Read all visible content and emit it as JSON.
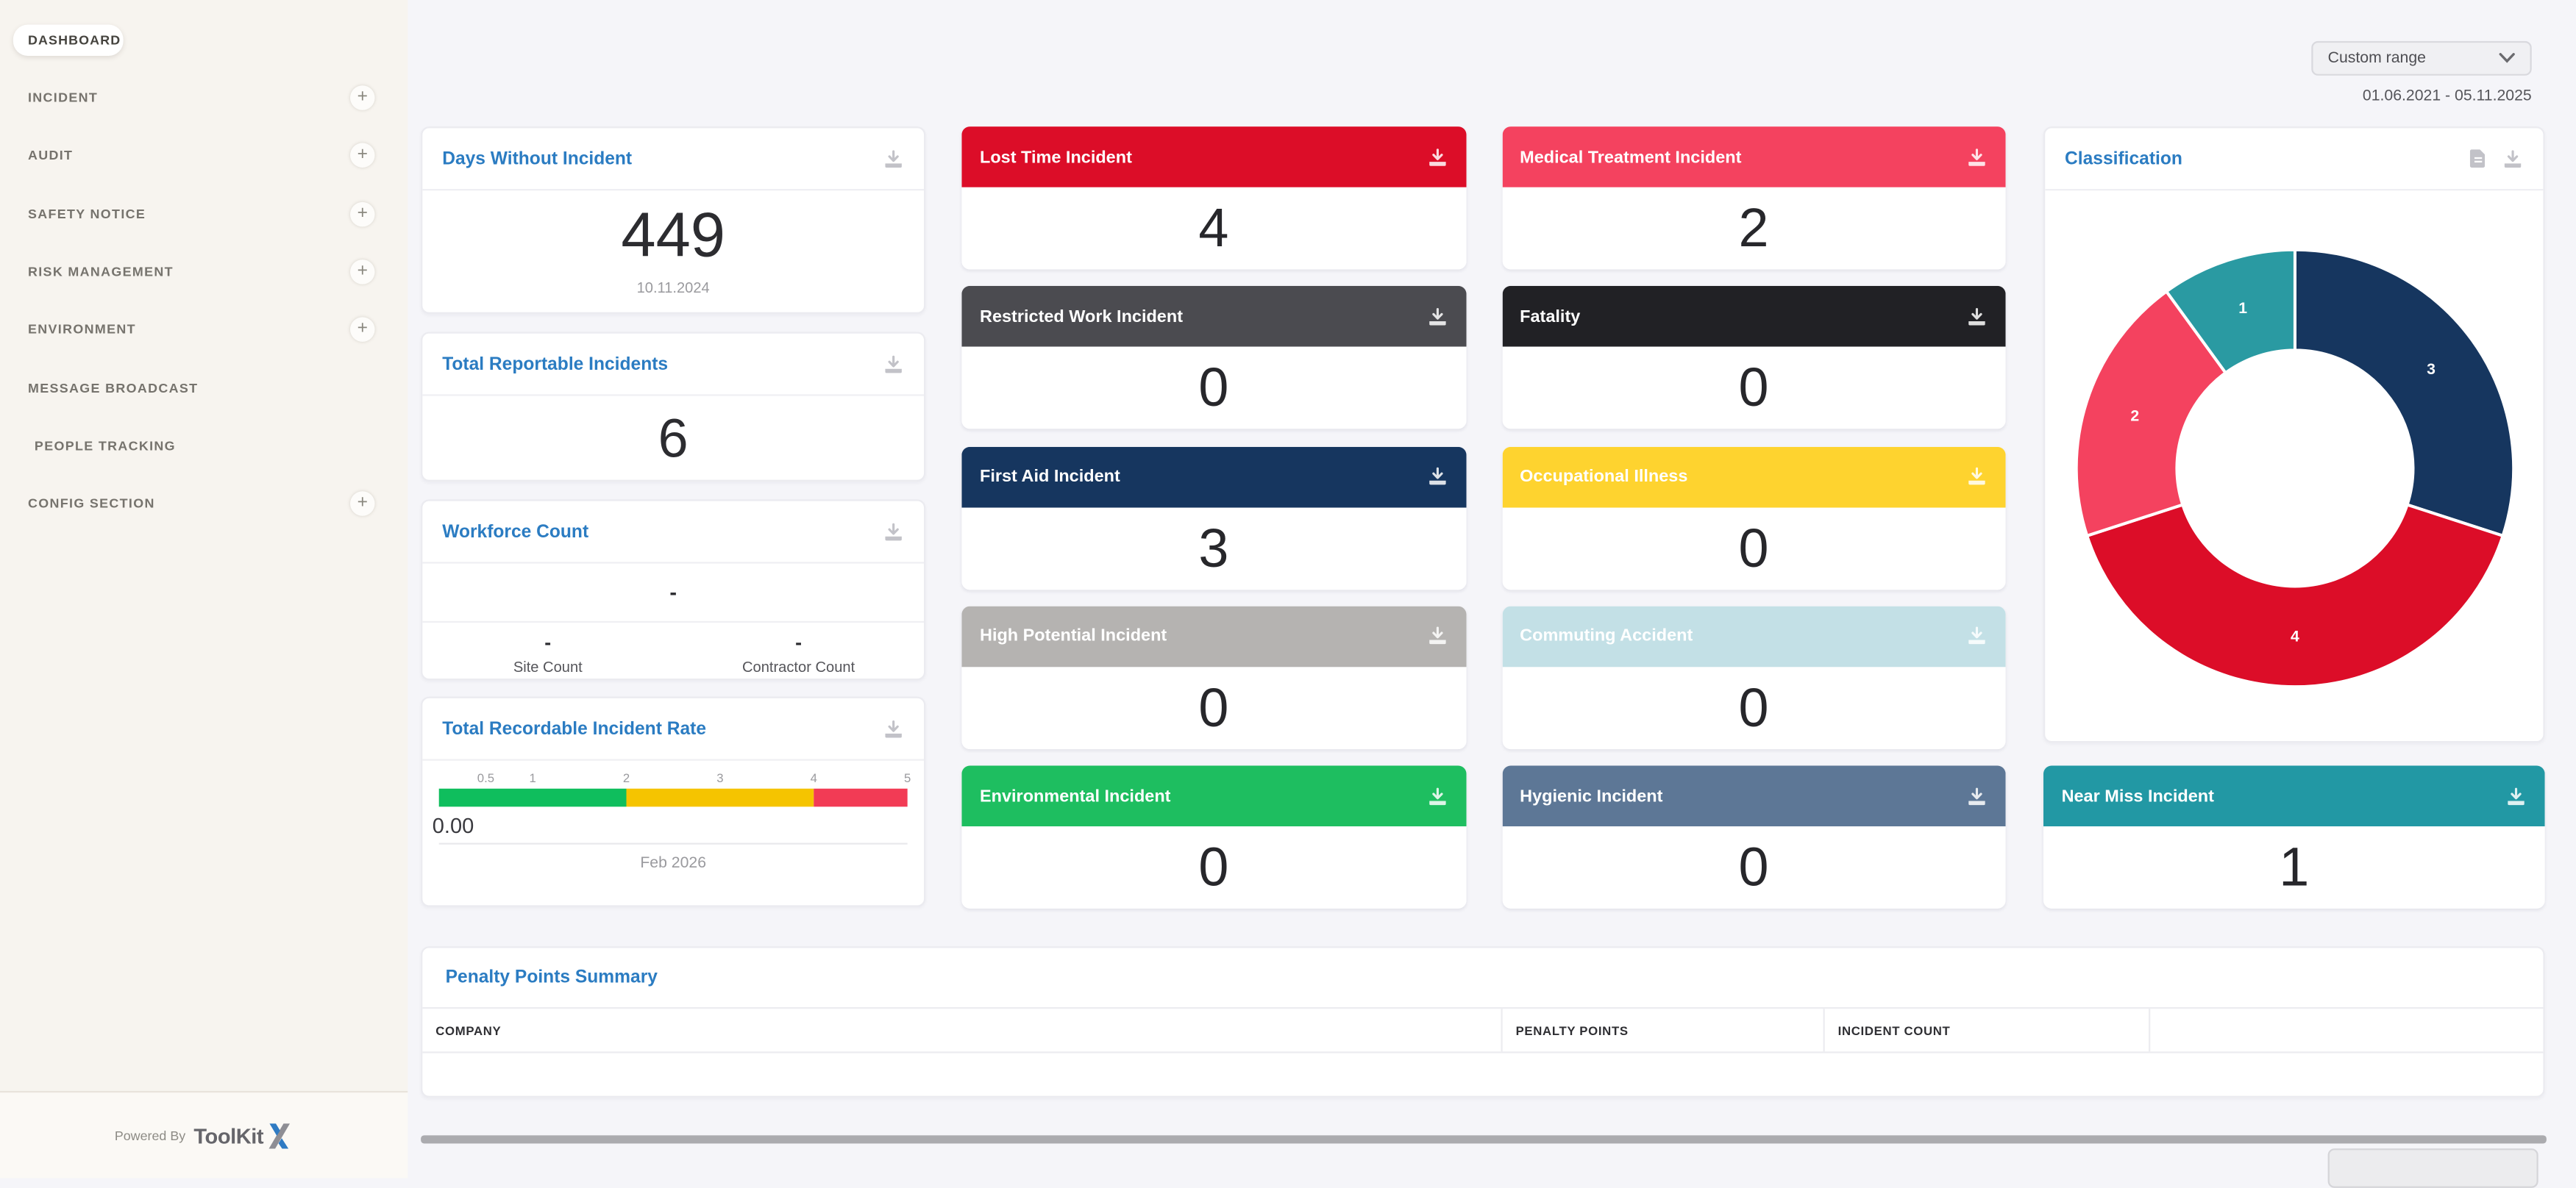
{
  "header": {
    "range_selector_value": "Custom range",
    "date_range": "01.06.2021 - 05.11.2025"
  },
  "sidebar": {
    "active_item": "DASHBOARD",
    "items": [
      {
        "label": "INCIDENT",
        "has_submenu": true
      },
      {
        "label": "AUDIT",
        "has_submenu": true
      },
      {
        "label": "SAFETY NOTICE",
        "has_submenu": true
      },
      {
        "label": "RISK MANAGEMENT",
        "has_submenu": true
      },
      {
        "label": "ENVIRONMENT",
        "has_submenu": true
      },
      {
        "label": "MESSAGE BROADCAST",
        "has_submenu": false
      },
      {
        "label": "PEOPLE TRACKING",
        "has_submenu": false
      },
      {
        "label": "CONFIG SECTION",
        "has_submenu": true
      }
    ],
    "footer": {
      "powered_by": "Powered By",
      "brand": "ToolKit",
      "brand_suffix": "X"
    }
  },
  "stat_cards": {
    "days_without_incident": {
      "title": "Days Without Incident",
      "value": "449",
      "date": "10.11.2024"
    },
    "total_reportable": {
      "title": "Total Reportable Incidents",
      "value": "6"
    },
    "workforce": {
      "title": "Workforce Count",
      "value": "-",
      "site_count_value": "-",
      "site_count_label": "Site Count",
      "contractor_count_value": "-",
      "contractor_count_label": "Contractor Count"
    },
    "trir": {
      "title": "Total Recordable Incident Rate"
    }
  },
  "incident_cards": [
    {
      "label": "Lost Time Incident",
      "value": "4",
      "color": "#dc0d28"
    },
    {
      "label": "Medical Treatment Incident",
      "value": "2",
      "color": "#f4425f"
    },
    {
      "label": "Restricted Work Incident",
      "value": "0",
      "color": "#4b4b50"
    },
    {
      "label": "Fatality",
      "value": "0",
      "color": "#212125"
    },
    {
      "label": "First Aid Incident",
      "value": "3",
      "color": "#16365f"
    },
    {
      "label": "Occupational Illness",
      "value": "0",
      "color": "#fed32f"
    },
    {
      "label": "High Potential Incident",
      "value": "0",
      "color": "#b5b3b1"
    },
    {
      "label": "Commuting Accident",
      "value": "0",
      "color": "#c3e0e6"
    },
    {
      "label": "Environmental Incident",
      "value": "0",
      "color": "#1ebe60"
    },
    {
      "label": "Hygienic Incident",
      "value": "0",
      "color": "#5d7796"
    },
    {
      "label": "Near Miss Incident",
      "value": "1",
      "color": "#2298a4"
    }
  ],
  "classification": {
    "title": "Classification"
  },
  "penalty": {
    "title": "Penalty Points Summary",
    "columns": [
      "COMPANY",
      "PENALTY POINTS",
      "INCIDENT COUNT",
      ""
    ],
    "rows": []
  },
  "chart_data": [
    {
      "id": "trir_gauge",
      "type": "bar",
      "title": "Total Recordable Incident Rate",
      "value": 0.0,
      "value_label": "0.00",
      "period": "Feb 2026",
      "axis_ticks": [
        0.5,
        1,
        2,
        3,
        4,
        5
      ],
      "axis_range": [
        0,
        5
      ],
      "zones": [
        {
          "from": 0,
          "to": 2,
          "color": "#0fbe5d"
        },
        {
          "from": 2,
          "to": 4,
          "color": "#f5c400"
        },
        {
          "from": 4,
          "to": 5,
          "color": "#f23b55"
        }
      ]
    },
    {
      "id": "classification_donut",
      "type": "pie",
      "title": "Classification",
      "labels": [
        "3",
        "4",
        "2",
        "1"
      ],
      "values": [
        3,
        4,
        2,
        1
      ],
      "colors": [
        "#16365f",
        "#dc0d28",
        "#f4425f",
        "#2a9aa2"
      ],
      "start_angle_deg": 0,
      "clockwise": true,
      "donut_hole_ratio": 0.54,
      "legend": "none"
    }
  ]
}
